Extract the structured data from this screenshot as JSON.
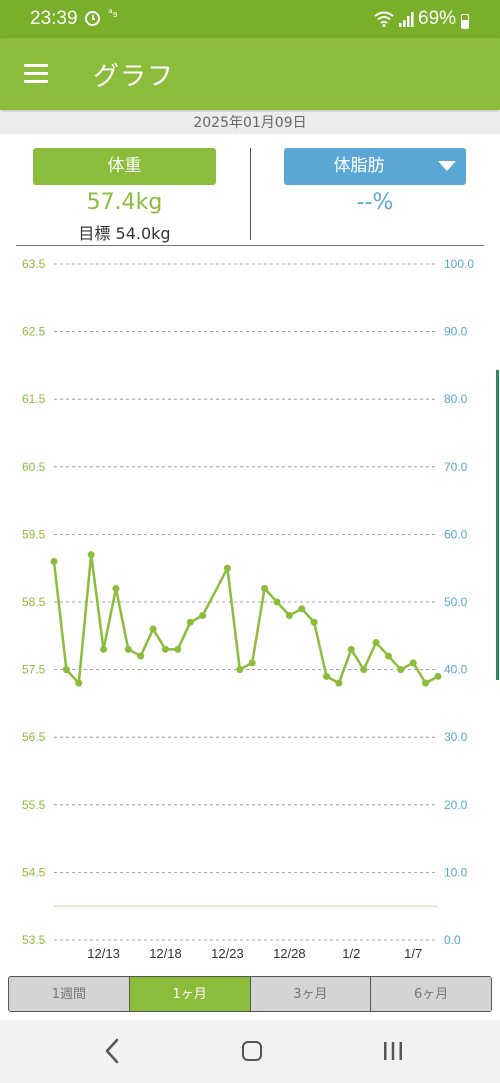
{
  "status_bar": {
    "time": "23:39",
    "alt_icon_text": "ᵃ₉",
    "battery": "69%"
  },
  "app_bar": {
    "title": "グラフ"
  },
  "date": "2025年01月09日",
  "weight": {
    "label": "体重",
    "value": "57.4kg",
    "goal": "目標 54.0kg"
  },
  "body_fat": {
    "label": "体脂肪",
    "value": "--%"
  },
  "tabs": [
    "1週間",
    "1ヶ月",
    "3ヶ月",
    "6ヶ月"
  ],
  "active_tab": 1,
  "colors": {
    "green": "#8bbc3c",
    "blue": "#5aa7d6"
  },
  "chart_data": {
    "type": "line",
    "left_axis": {
      "ticks": [
        "63.5",
        "62.5",
        "61.5",
        "60.5",
        "59.5",
        "58.5",
        "57.5",
        "56.5",
        "55.5",
        "54.5",
        "53.5"
      ],
      "range": [
        53.5,
        63.5
      ],
      "color": "#8bbc3c"
    },
    "right_axis": {
      "ticks": [
        "100.0",
        "90.0",
        "80.0",
        "70.0",
        "60.0",
        "50.0",
        "40.0",
        "30.0",
        "20.0",
        "10.0",
        "0.0"
      ],
      "range": [
        0,
        100
      ],
      "color": "#5aa7d6"
    },
    "x_ticks": [
      "12/13",
      "12/18",
      "12/23",
      "12/28",
      "1/2",
      "1/7"
    ],
    "x_tick_days": [
      4,
      9,
      14,
      19,
      24,
      29
    ],
    "x_range": [
      0,
      31
    ],
    "goal_line": 54.0,
    "grid": true,
    "series": [
      {
        "color": "#8bbc3c",
        "x": [
          0,
          1,
          2,
          3,
          4,
          5,
          6,
          7,
          8,
          9,
          10,
          11,
          12,
          14,
          15,
          16,
          17,
          18,
          19,
          20,
          21,
          22,
          23,
          24,
          25,
          26,
          27,
          28,
          29,
          30,
          31
        ],
        "values": [
          59.1,
          57.5,
          57.3,
          59.2,
          57.8,
          58.7,
          57.8,
          57.7,
          58.1,
          57.8,
          57.8,
          58.2,
          58.3,
          59.0,
          57.5,
          57.6,
          58.7,
          58.5,
          58.3,
          58.4,
          58.2,
          57.4,
          57.3,
          57.8,
          57.5,
          57.9,
          57.7,
          57.5,
          57.6,
          57.3,
          57.4
        ]
      }
    ]
  }
}
